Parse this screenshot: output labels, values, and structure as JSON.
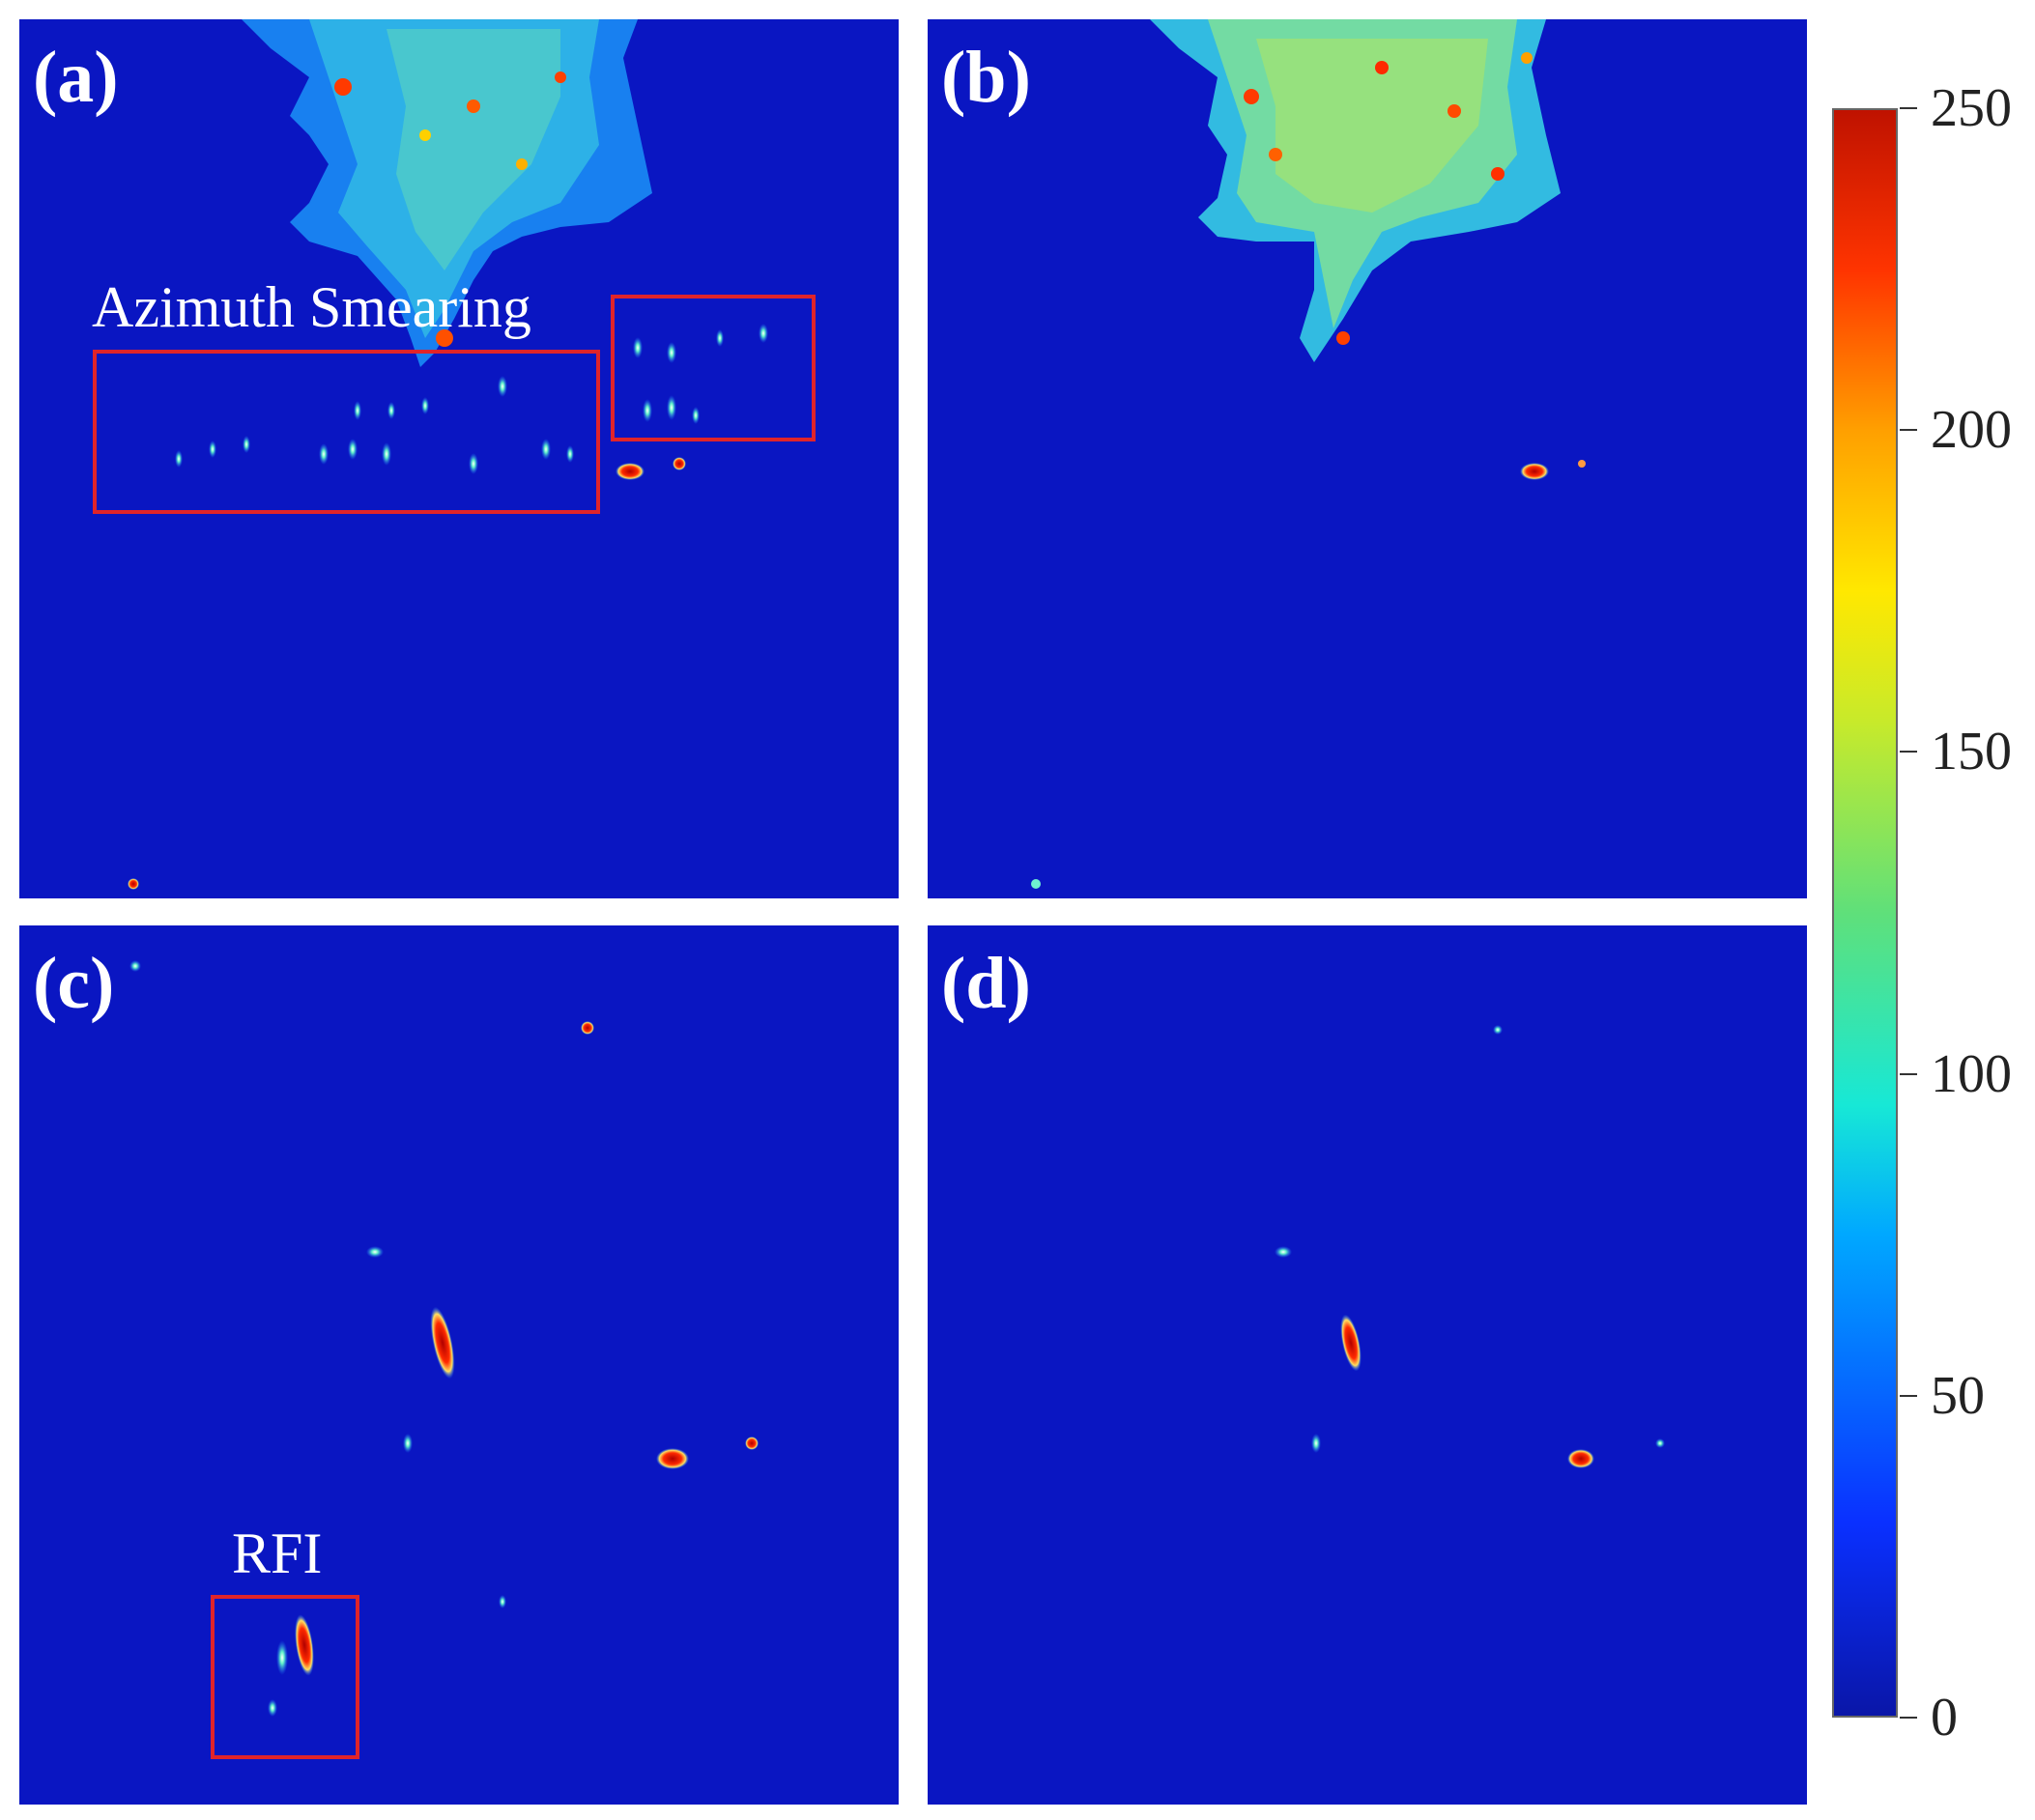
{
  "panels": [
    {
      "label": "(a)"
    },
    {
      "label": "(b)"
    },
    {
      "label": "(c)"
    },
    {
      "label": "(d)"
    }
  ],
  "annotations": {
    "azimuth_smearing": "Azimuth Smearing",
    "rfi": "RFI"
  },
  "colorbar": {
    "ticks": [
      "250",
      "200",
      "150",
      "100",
      "50",
      "0"
    ],
    "min": 0,
    "max": 250,
    "colormap": "jet"
  },
  "colors": {
    "background": "#0a16c2",
    "annotation_box": "#e0242a"
  }
}
